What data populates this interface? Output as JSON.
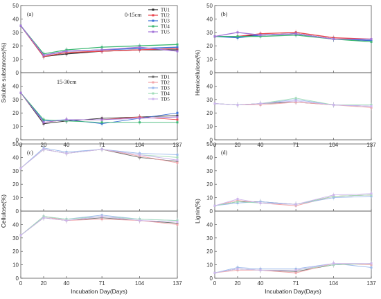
{
  "x_categories": [
    "0",
    "20",
    "40",
    "71",
    "104",
    "137"
  ],
  "x_values": [
    0,
    20,
    40,
    71,
    104,
    137
  ],
  "xlabel": "Incubation Day(Days)",
  "series_colors": {
    "1": "#2b2b2b",
    "2": "#e8434b",
    "3": "#3a6fd8",
    "4": "#3cb873",
    "5": "#a374d8"
  },
  "light_colors": {
    "1": "#6a6a6a",
    "2": "#f2a4a8",
    "3": "#9ab8ec",
    "4": "#9fdcb8",
    "5": "#cdb4ec"
  },
  "chart_data": [
    {
      "type": "line",
      "panel": "(a)",
      "ylabel": "Soluble substances(%)",
      "ylim": [
        0,
        50
      ],
      "yticks": [
        0,
        10,
        20,
        30,
        40,
        50
      ],
      "subpanels": [
        {
          "label": "0-15cm",
          "legend_position": "top-right",
          "series": [
            {
              "name": "TU1",
              "values": [
                35,
                12,
                14,
                16,
                17,
                17
              ]
            },
            {
              "name": "TU2",
              "values": [
                35,
                12,
                15,
                16,
                17,
                18
              ]
            },
            {
              "name": "TU3",
              "values": [
                35,
                13,
                16,
                17,
                18,
                19
              ]
            },
            {
              "name": "TU4",
              "values": [
                35,
                14,
                17,
                19,
                20,
                21
              ]
            },
            {
              "name": "TU5",
              "values": [
                35,
                13,
                16,
                17,
                19,
                16
              ]
            }
          ]
        },
        {
          "label": "15-30cm",
          "legend_position": "top-right",
          "series": [
            {
              "name": "TD1",
              "values": [
                35,
                12,
                14,
                16,
                17,
                18
              ]
            },
            {
              "name": "TD2",
              "values": [
                35,
                13,
                15,
                15,
                17,
                15
              ]
            },
            {
              "name": "TD3",
              "values": [
                35,
                14,
                15,
                12,
                16,
                20
              ]
            },
            {
              "name": "TD4",
              "values": [
                35,
                15,
                14,
                13,
                13,
                13
              ]
            },
            {
              "name": "TD5",
              "values": [
                35,
                13,
                15,
                15,
                16,
                17
              ]
            }
          ]
        }
      ]
    },
    {
      "type": "line",
      "panel": "(b)",
      "ylabel": "Hemicellulose(%)",
      "ylim": [
        0,
        50
      ],
      "yticks": [
        0,
        10,
        20,
        30,
        40,
        50
      ],
      "subpanels": [
        {
          "label": "",
          "series": [
            {
              "name": "TU1",
              "values": [
                27,
                27,
                28,
                29,
                25,
                24
              ]
            },
            {
              "name": "TU2",
              "values": [
                27,
                27,
                29,
                30,
                26,
                25
              ]
            },
            {
              "name": "TU3",
              "values": [
                27,
                26,
                28,
                29,
                25,
                24
              ]
            },
            {
              "name": "TU4",
              "values": [
                27,
                27,
                27,
                28,
                25,
                23
              ]
            },
            {
              "name": "TU5",
              "values": [
                27,
                30,
                28,
                29,
                25,
                25
              ]
            }
          ]
        },
        {
          "label": "",
          "series": [
            {
              "name": "TD1",
              "values": [
                27,
                26,
                27,
                28,
                26,
                25
              ]
            },
            {
              "name": "TD2",
              "values": [
                27,
                26,
                26,
                28,
                26,
                24
              ]
            },
            {
              "name": "TD3",
              "values": [
                27,
                26,
                27,
                30,
                26,
                25
              ]
            },
            {
              "name": "TD4",
              "values": [
                27,
                26,
                27,
                31,
                26,
                26
              ]
            },
            {
              "name": "TD5",
              "values": [
                27,
                26,
                27,
                29,
                26,
                25
              ]
            }
          ]
        }
      ]
    },
    {
      "type": "line",
      "panel": "(c)",
      "ylabel": "Cellulose(%)",
      "ylim": [
        0,
        50
      ],
      "yticks": [
        0,
        10,
        20,
        30,
        40,
        50
      ],
      "subpanels": [
        {
          "label": "",
          "series": [
            {
              "name": "TU1",
              "values": [
                32,
                46,
                43,
                46,
                40,
                37
              ]
            },
            {
              "name": "TU2",
              "values": [
                32,
                46,
                43,
                46,
                41,
                36
              ]
            },
            {
              "name": "TU3",
              "values": [
                32,
                47,
                44,
                46,
                43,
                42
              ]
            },
            {
              "name": "TU4",
              "values": [
                32,
                46,
                43,
                46,
                42,
                40
              ]
            },
            {
              "name": "TU5",
              "values": [
                32,
                46,
                43,
                46,
                42,
                38
              ]
            }
          ]
        },
        {
          "label": "",
          "series": [
            {
              "name": "TD1",
              "values": [
                32,
                45,
                43,
                45,
                43,
                41
              ]
            },
            {
              "name": "TD2",
              "values": [
                32,
                46,
                43,
                44,
                43,
                40
              ]
            },
            {
              "name": "TD3",
              "values": [
                32,
                46,
                44,
                47,
                44,
                43
              ]
            },
            {
              "name": "TD4",
              "values": [
                32,
                46,
                44,
                46,
                44,
                43
              ]
            },
            {
              "name": "TD5",
              "values": [
                32,
                45,
                43,
                46,
                43,
                42
              ]
            }
          ]
        }
      ]
    },
    {
      "type": "line",
      "panel": "(d)",
      "ylabel": "Lignin(%)",
      "ylim": [
        0,
        50
      ],
      "yticks": [
        0,
        10,
        20,
        30,
        40,
        50
      ],
      "subpanels": [
        {
          "label": "",
          "series": [
            {
              "name": "TU1",
              "values": [
                4,
                7,
                7,
                5,
                11,
                12
              ]
            },
            {
              "name": "TU2",
              "values": [
                4,
                8,
                6,
                4,
                11,
                12
              ]
            },
            {
              "name": "TU3",
              "values": [
                4,
                6,
                7,
                5,
                10,
                11
              ]
            },
            {
              "name": "TU4",
              "values": [
                4,
                7,
                6,
                5,
                11,
                12
              ]
            },
            {
              "name": "TU5",
              "values": [
                4,
                9,
                6,
                5,
                12,
                13
              ]
            }
          ]
        },
        {
          "label": "",
          "series": [
            {
              "name": "TD1",
              "values": [
                4,
                7,
                6,
                5,
                10,
                11
              ]
            },
            {
              "name": "TD2",
              "values": [
                4,
                6,
                6,
                4,
                11,
                10
              ]
            },
            {
              "name": "TD3",
              "values": [
                4,
                8,
                7,
                7,
                11,
                8
              ]
            },
            {
              "name": "TD4",
              "values": [
                4,
                7,
                6,
                6,
                10,
                11
              ]
            },
            {
              "name": "TD5",
              "values": [
                4,
                7,
                6,
                6,
                11,
                11
              ]
            }
          ]
        }
      ]
    }
  ]
}
